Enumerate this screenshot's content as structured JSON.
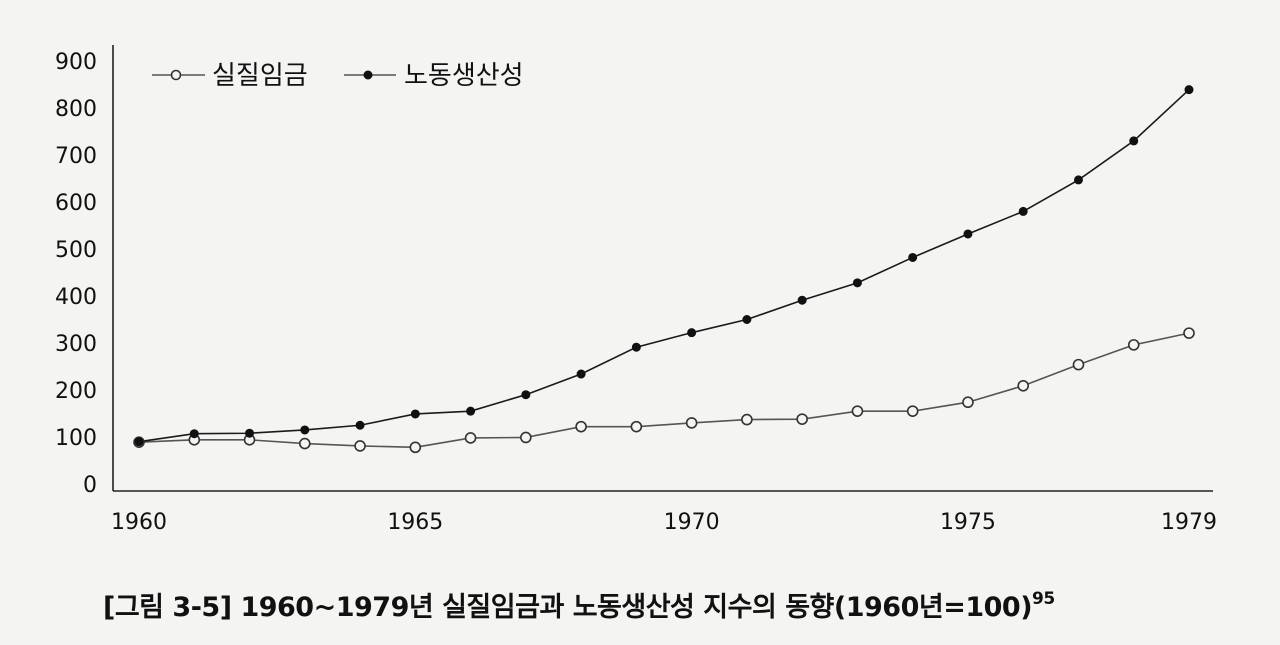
{
  "caption": {
    "text": "[그림 3-5] 1960~1979년 실질임금과 노동생산성 지수의 동향(1960년=100)",
    "footnote": "95"
  },
  "chart_data": {
    "type": "line",
    "title": "",
    "xlabel": "",
    "ylabel": "",
    "x": [
      1960,
      1961,
      1962,
      1963,
      1964,
      1965,
      1966,
      1967,
      1968,
      1969,
      1970,
      1971,
      1972,
      1973,
      1974,
      1975,
      1976,
      1977,
      1978,
      1979
    ],
    "x_tick_labels": [
      "1960",
      "1965",
      "1970",
      "1975",
      "1979"
    ],
    "y_tick_labels": [
      "0",
      "100",
      "200",
      "300",
      "400",
      "500",
      "600",
      "700",
      "800",
      "900"
    ],
    "xlim": [
      1960,
      1979
    ],
    "ylim": [
      0,
      900
    ],
    "grid": false,
    "legend_position": "top-left",
    "series": [
      {
        "name": "실질임금",
        "marker": "open-circle",
        "color": "#555555",
        "values": [
          89,
          94,
          94,
          86,
          81,
          78,
          98,
          99,
          122,
          122,
          130,
          137,
          138,
          155,
          155,
          174,
          209,
          254,
          296,
          321
        ]
      },
      {
        "name": "노동생산성",
        "marker": "filled-circle",
        "color": "#1a1a1a",
        "values": [
          90,
          107,
          108,
          115,
          125,
          149,
          155,
          190,
          234,
          291,
          322,
          350,
          391,
          428,
          482,
          532,
          580,
          647,
          730,
          839
        ]
      }
    ]
  }
}
